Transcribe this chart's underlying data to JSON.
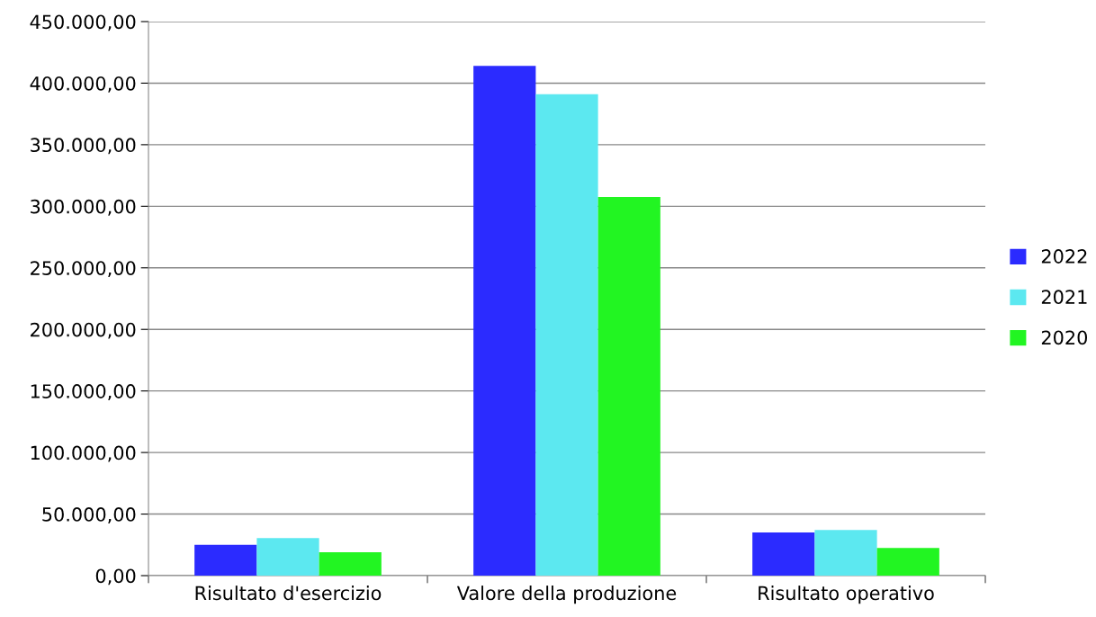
{
  "chart_data": {
    "type": "bar",
    "categories": [
      "Risultato d'esercizio",
      "Valore della produzione",
      "Risultato operativo"
    ],
    "series": [
      {
        "name": "2022",
        "color": "#2b2bff",
        "values": [
          25000,
          414000,
          35000
        ]
      },
      {
        "name": "2021",
        "color": "#5ce8f0",
        "values": [
          30500,
          391000,
          37000
        ]
      },
      {
        "name": "2020",
        "color": "#22f522",
        "values": [
          19000,
          307500,
          22500
        ]
      }
    ],
    "ylim": [
      0,
      450000
    ],
    "yticks": [
      {
        "value": 0,
        "label": "0,00"
      },
      {
        "value": 50000,
        "label": "50.000,00"
      },
      {
        "value": 100000,
        "label": "100.000,00"
      },
      {
        "value": 150000,
        "label": "150.000,00"
      },
      {
        "value": 200000,
        "label": "200.000,00"
      },
      {
        "value": 250000,
        "label": "250.000,00"
      },
      {
        "value": 300000,
        "label": "300.000,00"
      },
      {
        "value": 350000,
        "label": "350.000,00"
      },
      {
        "value": 400000,
        "label": "400.000,00"
      },
      {
        "value": 450000,
        "label": "450.000,00"
      }
    ],
    "grid": "y",
    "legend": "right"
  }
}
